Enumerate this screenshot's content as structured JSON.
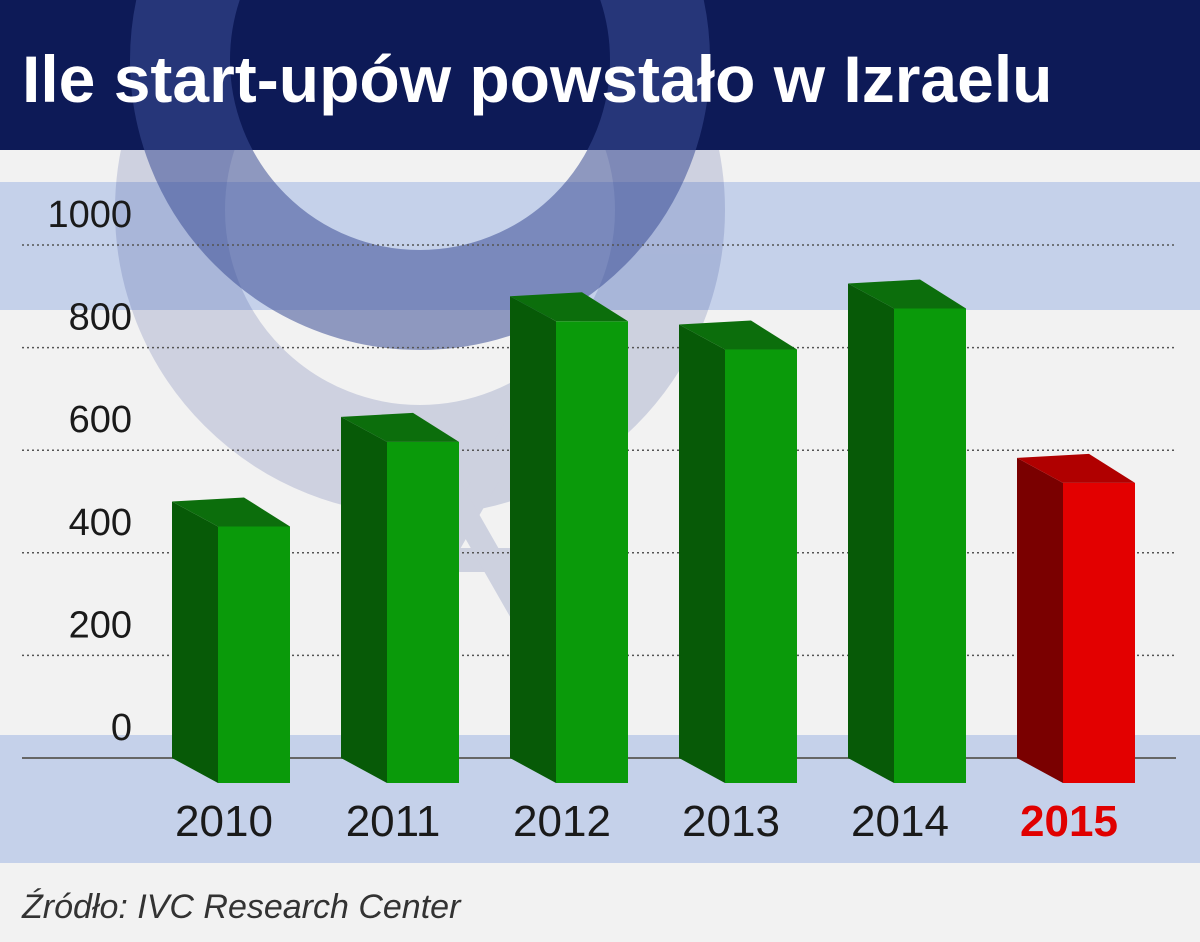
{
  "title": "Ile start-upów powstało w Izraelu",
  "source": "Źródło: IVC Research Center",
  "colors": {
    "header_bg": "#0d1a57",
    "band": "#c5d1ea",
    "bar_front": "#0a9a0a",
    "bar_side": "#075a07",
    "bar_top": "#0c6e0c",
    "highlight_front": "#e30000",
    "highlight_side": "#7a0000",
    "highlight_top": "#b00000"
  },
  "chart_data": {
    "type": "bar",
    "title": "Ile start-upów powstało w Izraelu",
    "categories": [
      "2010",
      "2011",
      "2012",
      "2013",
      "2014",
      "2015"
    ],
    "values": [
      500,
      665,
      900,
      845,
      925,
      585
    ],
    "highlight": "2015",
    "ylim": [
      0,
      1000
    ],
    "yticks": [
      0,
      200,
      400,
      600,
      800,
      1000
    ],
    "grid": true,
    "style": "3d"
  }
}
